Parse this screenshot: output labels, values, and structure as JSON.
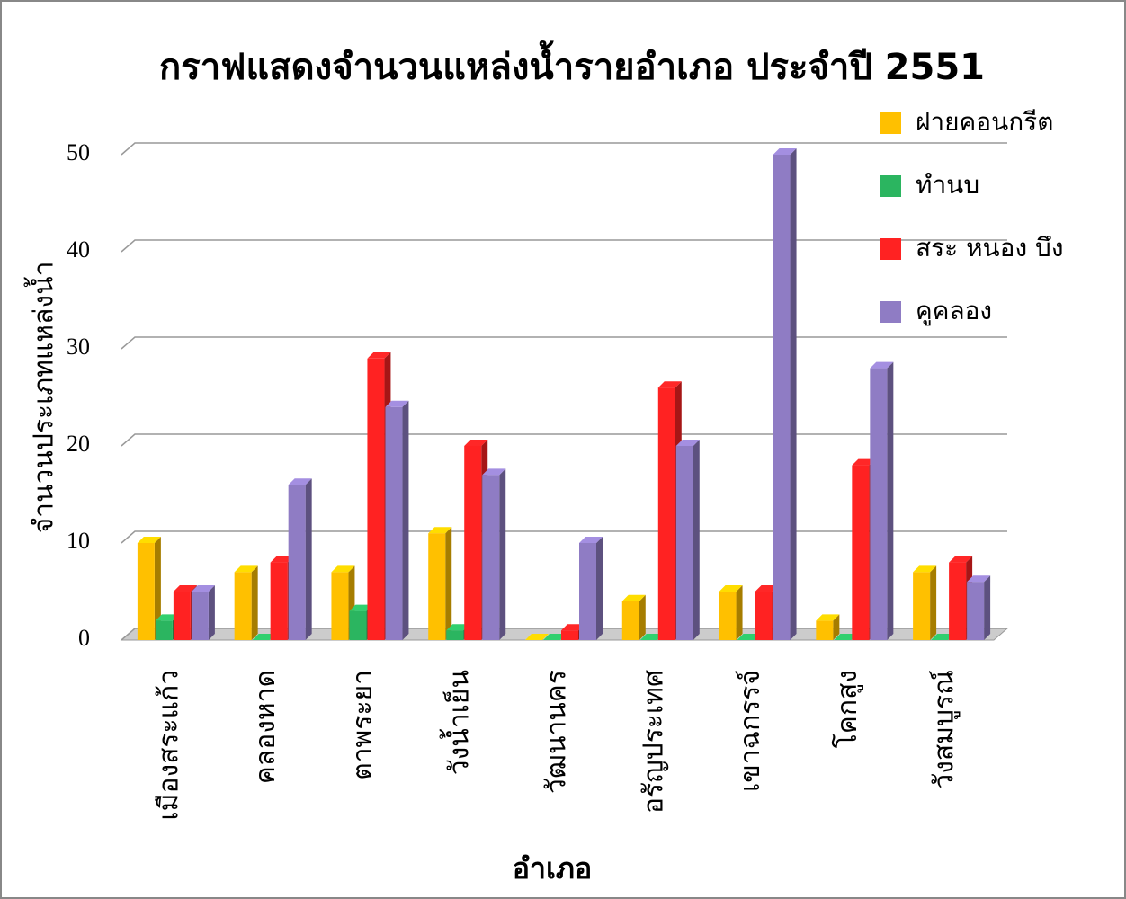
{
  "chart_data": {
    "type": "bar3d",
    "title": "กราฟแสดงจำนวนแหล่งน้ำรายอำเภอ   ประจำปี   2551",
    "xlabel": "อำเภอ",
    "ylabel": "จำนวนประเภทแหล่งน้ำ",
    "categories": [
      "เมืองสระแก้ว",
      "คลองหาด",
      "ตาพระยา",
      "วังน้ำเย็น",
      "วัฒนานคร",
      "อรัญประเทศ",
      "เขาฉกรรจ์",
      "โคกสูง",
      "วังสมบูรณ์"
    ],
    "series": [
      {
        "name": "ฝายคอนกรีต",
        "color": "#ffc000",
        "values": [
          10,
          7,
          7,
          11,
          0,
          4,
          5,
          2,
          7
        ]
      },
      {
        "name": "ทำนบ",
        "color": "#2bb560",
        "values": [
          2,
          0,
          3,
          1,
          0,
          0,
          0,
          0,
          0
        ]
      },
      {
        "name": "สระ   หนอง   บึง",
        "color": "#ff2222",
        "values": [
          5,
          8,
          29,
          20,
          1,
          26,
          5,
          18,
          8
        ]
      },
      {
        "name": "คูคลอง",
        "color": "#8f7cc4",
        "values": [
          5,
          16,
          24,
          17,
          10,
          20,
          50,
          28,
          6
        ]
      }
    ],
    "ylim": [
      0,
      50
    ],
    "yticks": [
      0,
      10,
      20,
      30,
      40,
      50
    ],
    "grid": true,
    "legend": "top-right"
  }
}
